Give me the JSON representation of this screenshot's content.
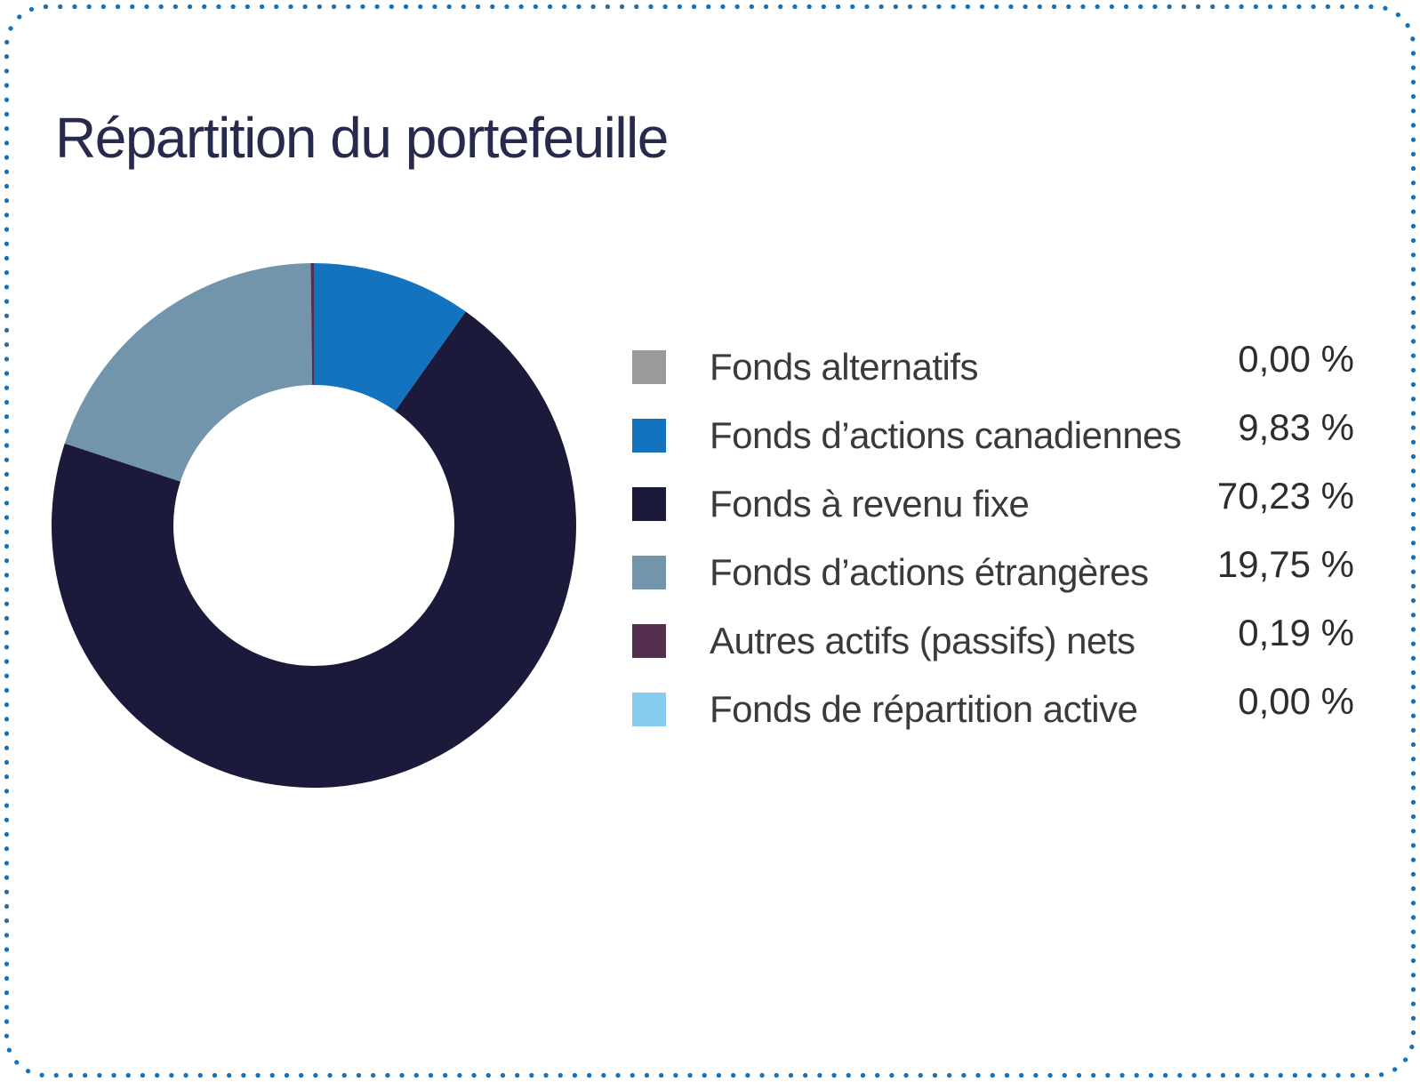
{
  "title": "Répartition du portefeuille",
  "border": {
    "color": "#1472bd"
  },
  "chart_data": {
    "type": "pie",
    "donut": true,
    "title": "Répartition du portefeuille",
    "start_angle_deg": 0,
    "direction": "clockwise",
    "legend_position": "right",
    "series": [
      {
        "label": "Fonds alternatifs",
        "value": 0.0,
        "display": "0,00 %",
        "color": "#9a9a9a"
      },
      {
        "label": "Fonds d’actions canadiennes",
        "value": 9.83,
        "display": "9,83 %",
        "color": "#1373bf"
      },
      {
        "label": "Fonds à revenu fixe",
        "value": 70.23,
        "display": "70,23 %",
        "color": "#1b1a3a"
      },
      {
        "label": "Fonds d’actions étrangères",
        "value": 19.75,
        "display": "19,75 %",
        "color": "#7295ab"
      },
      {
        "label": "Autres actifs (passifs) nets",
        "value": 0.19,
        "display": "0,19 %",
        "color": "#542e4d"
      },
      {
        "label": "Fonds de répartition active",
        "value": 0.0,
        "display": "0,00 %",
        "color": "#87cbee"
      }
    ]
  }
}
